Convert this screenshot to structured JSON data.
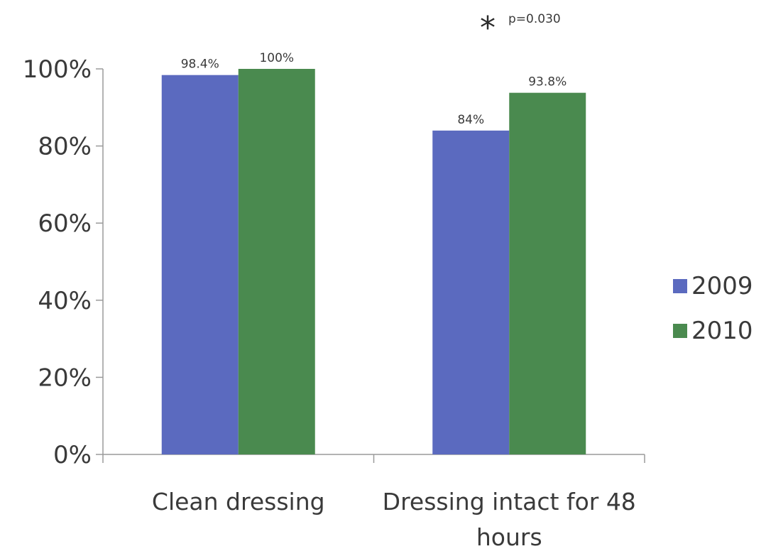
{
  "chart_data": {
    "type": "bar",
    "categories": [
      "Clean dressing",
      "Dressing intact for 48 hours"
    ],
    "series": [
      {
        "name": "2009",
        "values": [
          98.4,
          84
        ],
        "labels": [
          "98.4%",
          "84%"
        ],
        "color": "#5b6abf"
      },
      {
        "name": "2010",
        "values": [
          100,
          93.8
        ],
        "labels": [
          "100%",
          "93.8%"
        ],
        "color": "#4a8a4f"
      }
    ],
    "ylim": [
      0,
      100
    ],
    "yticks": [
      0,
      20,
      40,
      60,
      80,
      100
    ],
    "ytick_labels": [
      "0%",
      "20%",
      "40%",
      "60%",
      "80%",
      "100%"
    ],
    "legend_position": "right",
    "grid": false,
    "annotation": {
      "symbol": "*",
      "text": "p=0.030"
    }
  }
}
